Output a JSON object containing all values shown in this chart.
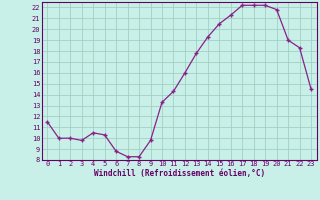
{
  "x_vals": [
    0,
    1,
    2,
    3,
    4,
    5,
    6,
    7,
    8,
    9,
    10,
    11,
    12,
    13,
    14,
    15,
    16,
    17,
    18,
    19,
    20,
    21,
    22,
    23
  ],
  "y_vals": [
    11.5,
    10.0,
    10.0,
    9.8,
    10.5,
    10.3,
    8.8,
    8.3,
    8.3,
    9.8,
    13.3,
    14.3,
    16.0,
    17.8,
    19.3,
    20.5,
    21.3,
    22.2,
    22.2,
    22.2,
    21.8,
    19.0,
    18.3,
    14.5
  ],
  "line_color": "#882288",
  "marker": "+",
  "marker_size": 3,
  "line_width": 0.9,
  "bg_color": "#c8f0e8",
  "grid_color": "#99ccbb",
  "xlabel": "Windchill (Refroidissement éolien,°C)",
  "ylim": [
    8,
    22.5
  ],
  "xlim": [
    -0.5,
    23.5
  ],
  "yticks": [
    8,
    9,
    10,
    11,
    12,
    13,
    14,
    15,
    16,
    17,
    18,
    19,
    20,
    21,
    22
  ],
  "xticks": [
    0,
    1,
    2,
    3,
    4,
    5,
    6,
    7,
    8,
    9,
    10,
    11,
    12,
    13,
    14,
    15,
    16,
    17,
    18,
    19,
    20,
    21,
    22,
    23
  ],
  "axis_color": "#660066",
  "label_color": "#660066",
  "tick_label_fontsize": 5,
  "xlabel_fontsize": 5.5,
  "xlabel_fontweight": "bold"
}
